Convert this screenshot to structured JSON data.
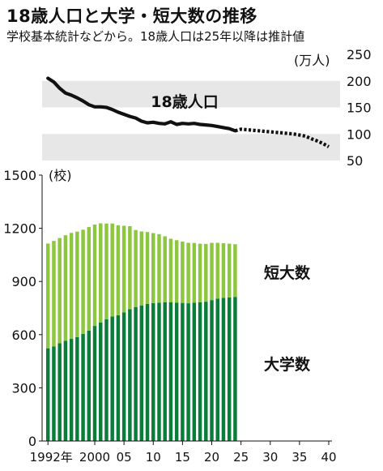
{
  "title": "18歳人口と大学・短大数の推移",
  "subtitle": "学校基本統計などから。18歳人口は25年以降は推計値",
  "chart_data": [
    {
      "type": "line",
      "ylabel": "(万人)",
      "series_label": "18歳人口",
      "ylim": [
        50,
        250
      ],
      "yticks": [
        50,
        100,
        150,
        200,
        250
      ],
      "grid_bands": [
        [
          150,
          200
        ],
        [
          50,
          100
        ]
      ],
      "actual": [
        {
          "x": 1992,
          "y": 205
        },
        {
          "x": 1993,
          "y": 198
        },
        {
          "x": 1994,
          "y": 186
        },
        {
          "x": 1995,
          "y": 177
        },
        {
          "x": 1996,
          "y": 173
        },
        {
          "x": 1997,
          "y": 168
        },
        {
          "x": 1998,
          "y": 162
        },
        {
          "x": 1999,
          "y": 155
        },
        {
          "x": 2000,
          "y": 151
        },
        {
          "x": 2001,
          "y": 151
        },
        {
          "x": 2002,
          "y": 150
        },
        {
          "x": 2003,
          "y": 146
        },
        {
          "x": 2004,
          "y": 141
        },
        {
          "x": 2005,
          "y": 137
        },
        {
          "x": 2006,
          "y": 133
        },
        {
          "x": 2007,
          "y": 130
        },
        {
          "x": 2008,
          "y": 124
        },
        {
          "x": 2009,
          "y": 121
        },
        {
          "x": 2010,
          "y": 122
        },
        {
          "x": 2011,
          "y": 120
        },
        {
          "x": 2012,
          "y": 119
        },
        {
          "x": 2013,
          "y": 123
        },
        {
          "x": 2014,
          "y": 118
        },
        {
          "x": 2015,
          "y": 120
        },
        {
          "x": 2016,
          "y": 119
        },
        {
          "x": 2017,
          "y": 120
        },
        {
          "x": 2018,
          "y": 118
        },
        {
          "x": 2019,
          "y": 117
        },
        {
          "x": 2020,
          "y": 116
        },
        {
          "x": 2021,
          "y": 114
        },
        {
          "x": 2022,
          "y": 112
        },
        {
          "x": 2023,
          "y": 110
        },
        {
          "x": 2024,
          "y": 106
        }
      ],
      "projected": [
        {
          "x": 2024,
          "y": 106
        },
        {
          "x": 2025,
          "y": 109
        },
        {
          "x": 2026,
          "y": 108
        },
        {
          "x": 2027,
          "y": 107
        },
        {
          "x": 2028,
          "y": 106
        },
        {
          "x": 2029,
          "y": 105
        },
        {
          "x": 2030,
          "y": 104
        },
        {
          "x": 2031,
          "y": 103
        },
        {
          "x": 2032,
          "y": 102
        },
        {
          "x": 2033,
          "y": 101
        },
        {
          "x": 2034,
          "y": 100
        },
        {
          "x": 2035,
          "y": 98
        },
        {
          "x": 2036,
          "y": 96
        },
        {
          "x": 2037,
          "y": 91
        },
        {
          "x": 2038,
          "y": 87
        },
        {
          "x": 2039,
          "y": 82
        },
        {
          "x": 2040,
          "y": 76
        }
      ],
      "colors": {
        "line": "#111111",
        "band": "#e7e7e7"
      }
    },
    {
      "type": "bar",
      "stacked": true,
      "ylabel": "(校)",
      "ylim": [
        0,
        1500
      ],
      "yticks": [
        0,
        300,
        600,
        900,
        1200,
        1500
      ],
      "x": [
        1992,
        1993,
        1994,
        1995,
        1996,
        1997,
        1998,
        1999,
        2000,
        2001,
        2002,
        2003,
        2004,
        2005,
        2006,
        2007,
        2008,
        2009,
        2010,
        2011,
        2012,
        2013,
        2014,
        2015,
        2016,
        2017,
        2018,
        2019,
        2020,
        2021,
        2022,
        2023,
        2024
      ],
      "xaxis_min": 1991,
      "xaxis_max": 2040,
      "xticks": [
        {
          "x": 1992,
          "label": "1992年"
        },
        {
          "x": 2000,
          "label": "2000"
        },
        {
          "x": 2005,
          "label": "05"
        },
        {
          "x": 2010,
          "label": "10"
        },
        {
          "x": 2015,
          "label": "15"
        },
        {
          "x": 2020,
          "label": "20"
        },
        {
          "x": 2025,
          "label": "25"
        },
        {
          "x": 2030,
          "label": "30"
        },
        {
          "x": 2035,
          "label": "35"
        },
        {
          "x": 2040,
          "label": "40"
        }
      ],
      "series": [
        {
          "name": "大学数",
          "color": "#0a7d3a",
          "values": [
            523,
            534,
            552,
            565,
            576,
            586,
            604,
            622,
            649,
            669,
            686,
            702,
            709,
            726,
            744,
            756,
            765,
            773,
            778,
            780,
            783,
            782,
            781,
            779,
            777,
            780,
            782,
            786,
            795,
            803,
            807,
            810,
            813
          ]
        },
        {
          "name": "短大数",
          "color": "#8dc63f",
          "values": [
            591,
            595,
            593,
            596,
            598,
            595,
            588,
            585,
            572,
            559,
            541,
            525,
            508,
            488,
            468,
            434,
            417,
            406,
            395,
            387,
            372,
            359,
            352,
            346,
            341,
            337,
            331,
            326,
            323,
            315,
            309,
            303,
            297
          ]
        }
      ]
    }
  ]
}
